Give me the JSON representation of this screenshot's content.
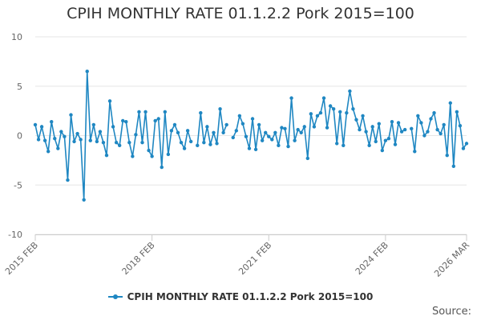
{
  "chart_data": {
    "type": "line",
    "title": "CPIH MONTHLY RATE 01.1.2.2 Pork 2015=100",
    "xlabel": "",
    "ylabel": "",
    "ylim": [
      -10,
      10
    ],
    "yticks": [
      10,
      5,
      0,
      -5,
      -10
    ],
    "x_tick_labels": [
      "2015 FEB",
      "2018 FEB",
      "2021 FEB",
      "2024 FEB",
      "2026 MAR"
    ],
    "x_tick_positions": [
      0,
      36,
      72,
      108,
      133
    ],
    "grid": true,
    "legend_position": "bottom",
    "source_label": "Source:",
    "color": "#1f87c2",
    "series": [
      {
        "name": "CPIH MONTHLY RATE 01.1.2.2 Pork 2015=100",
        "values": [
          1.1,
          -0.4,
          0.9,
          -0.5,
          -1.6,
          1.4,
          -0.3,
          -1.3,
          0.4,
          -0.1,
          -4.5,
          2.1,
          -0.6,
          0.2,
          -0.4,
          -6.5,
          6.5,
          -0.5,
          1.1,
          -0.6,
          0.4,
          -0.7,
          -2.0,
          3.5,
          0.9,
          -0.7,
          -1.0,
          1.5,
          1.4,
          -0.7,
          -2.1,
          0.1,
          2.4,
          -0.7,
          2.4,
          -1.5,
          -2.1,
          1.5,
          1.7,
          -3.2,
          2.4,
          -1.9,
          0.5,
          1.1,
          0.3,
          -0.7,
          -1.3,
          0.5,
          -0.6,
          null,
          -1.0,
          2.3,
          -0.7,
          0.9,
          -0.9,
          0.3,
          -0.8,
          2.7,
          0.3,
          1.1,
          null,
          -0.2,
          0.5,
          2.0,
          1.2,
          -0.1,
          -1.3,
          1.7,
          -1.4,
          1.1,
          -0.5,
          0.3,
          -0.1,
          -0.4,
          0.3,
          -1.0,
          0.8,
          0.7,
          -1.1,
          3.8,
          -0.5,
          0.6,
          0.3,
          0.9,
          -2.3,
          2.2,
          0.9,
          2.0,
          2.3,
          3.8,
          0.8,
          3.0,
          2.7,
          -0.8,
          2.4,
          -1.0,
          2.3,
          4.5,
          2.7,
          1.6,
          0.6,
          2.0,
          0.4,
          -1.0,
          0.9,
          -0.6,
          1.2,
          -1.5,
          -0.5,
          -0.3,
          1.4,
          -0.9,
          1.3,
          0.4,
          0.6,
          null,
          0.7,
          -1.6,
          2.0,
          1.3,
          0.0,
          0.4,
          1.7,
          2.3,
          0.6,
          0.2,
          1.1,
          -2.0,
          3.3,
          -3.1,
          2.4,
          1.0,
          -1.3,
          -0.8
        ]
      }
    ]
  }
}
